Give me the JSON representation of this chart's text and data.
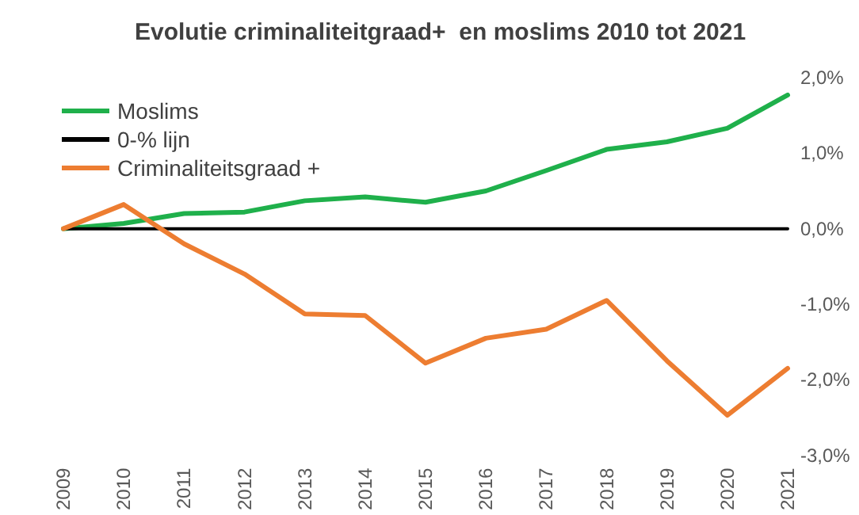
{
  "chart_data": {
    "type": "line",
    "title": "Evolutie criminaliteitgraad+  en moslims 2010 tot 2021",
    "categories": [
      "2009",
      "2010",
      "2011",
      "2012",
      "2013",
      "2014",
      "2015",
      "2016",
      "2017",
      "2018",
      "2019",
      "2020",
      "2021"
    ],
    "series": [
      {
        "name": "Moslims",
        "color": "#1fb04b",
        "values": [
          0,
          0.07,
          0.2,
          0.22,
          0.37,
          0.42,
          0.35,
          0.5,
          0.77,
          1.05,
          1.15,
          1.33,
          1.77
        ]
      },
      {
        "name": "0-% lijn",
        "color": "#000000",
        "values": [
          0,
          0,
          0,
          0,
          0,
          0,
          0,
          0,
          0,
          0,
          0,
          0,
          0
        ]
      },
      {
        "name": "Criminaliteitsgraad +",
        "color": "#ed7d31",
        "values": [
          0,
          0.32,
          -0.2,
          -0.6,
          -1.13,
          -1.15,
          -1.78,
          -1.45,
          -1.33,
          -0.95,
          -1.75,
          -2.47,
          -1.85
        ]
      }
    ],
    "ylim": [
      -3,
      2
    ],
    "yticks": [
      {
        "value": -3,
        "label": "-3,0%"
      },
      {
        "value": -2,
        "label": "-2,0%"
      },
      {
        "value": -1,
        "label": "-1,0%"
      },
      {
        "value": 0,
        "label": "0,0%"
      },
      {
        "value": 1,
        "label": "1,0%"
      },
      {
        "value": 2,
        "label": "2,0%"
      }
    ],
    "grid": false,
    "legend": "top left",
    "marker": "none",
    "line_style": "solid"
  }
}
